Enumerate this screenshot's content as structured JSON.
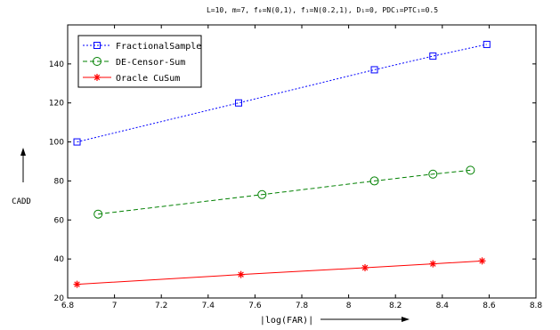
{
  "chart_data": {
    "type": "line",
    "title": "L=10, m=7, f₀=N(0,1), f₁=N(0.2,1), D₁=0, PDC₁=PTC₁=0.5",
    "xlabel": "|log(FAR)|",
    "ylabel": "CADD",
    "xlim": [
      6.8,
      8.8
    ],
    "ylim": [
      20,
      160
    ],
    "xticks": [
      6.8,
      7,
      7.2,
      7.4,
      7.6,
      7.8,
      8,
      8.2,
      8.4,
      8.6,
      8.8
    ],
    "xtick_labels": [
      "6.8",
      "7",
      "7.2",
      "7.4",
      "7.6",
      "7.8",
      "8",
      "8.2",
      "8.4",
      "8.6",
      "8.8"
    ],
    "yticks": [
      20,
      40,
      60,
      80,
      100,
      120,
      140
    ],
    "ytick_labels": [
      "20",
      "40",
      "60",
      "80",
      "100",
      "120",
      "140"
    ],
    "grid": false,
    "legend_position": "top-left",
    "series": [
      {
        "name": "FractionalSample",
        "color": "#0000ff",
        "line_style": "dotted",
        "marker": "square",
        "x": [
          6.84,
          7.53,
          8.11,
          8.36,
          8.59
        ],
        "y": [
          100,
          120,
          137,
          144,
          150
        ]
      },
      {
        "name": "DE-Censor-Sum",
        "color": "#008000",
        "line_style": "dashed",
        "marker": "circle",
        "x": [
          6.93,
          7.63,
          8.11,
          8.36,
          8.52
        ],
        "y": [
          63,
          73,
          80,
          83.5,
          85.5
        ]
      },
      {
        "name": "Oracle CuSum",
        "color": "#ff0000",
        "line_style": "solid",
        "marker": "asterisk",
        "x": [
          6.84,
          7.54,
          8.07,
          8.36,
          8.57
        ],
        "y": [
          27,
          32,
          35.5,
          37.5,
          39
        ]
      }
    ]
  }
}
